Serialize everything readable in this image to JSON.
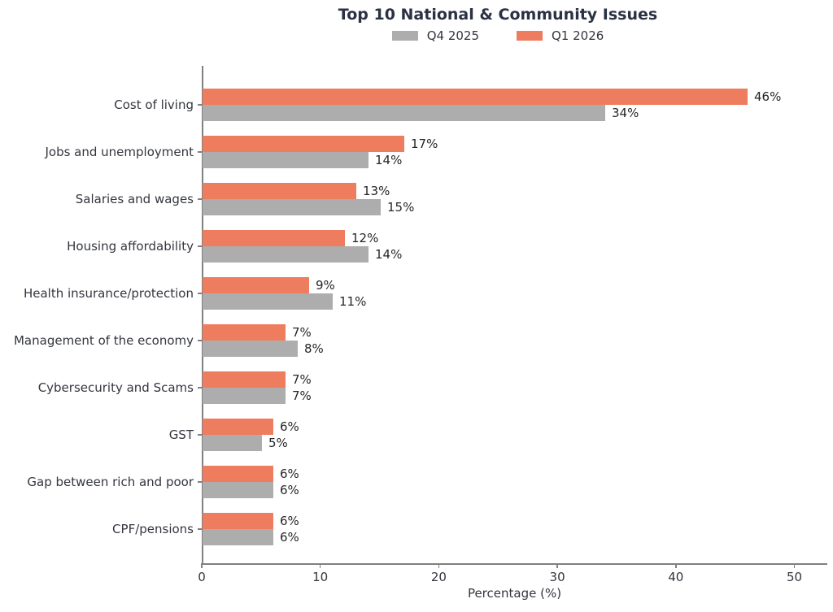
{
  "title": "Top 10 National & Community Issues",
  "legend": [
    {
      "label": "Q4 2025",
      "color": "#adadad"
    },
    {
      "label": "Q1 2026",
      "color": "#ee7d5f"
    }
  ],
  "chart_data": {
    "type": "bar",
    "orientation": "horizontal",
    "title": "Top 10 National & Community Issues",
    "xlabel": "Percentage (%)",
    "xlim": [
      0,
      50
    ],
    "xticks": [
      "0",
      "10",
      "20",
      "30",
      "40",
      "50"
    ],
    "grid": false,
    "legend_position": "top-center",
    "value_suffix": "%",
    "categories": [
      "Cost of living",
      "Jobs and unemployment",
      "Salaries and wages",
      "Housing affordability",
      "Health insurance/protection",
      "Management of the economy",
      "Cybersecurity and Scams",
      "GST",
      "Gap between rich and poor",
      "CPF/pensions"
    ],
    "series": [
      {
        "name": "Q1 2026",
        "color": "#ee7d5f",
        "bar_position": "top",
        "values": [
          46,
          17,
          13,
          12,
          9,
          7,
          7,
          6,
          6,
          6
        ]
      },
      {
        "name": "Q4 2025",
        "color": "#adadad",
        "bar_position": "bottom",
        "values": [
          34,
          14,
          15,
          14,
          11,
          8,
          7,
          5,
          6,
          6
        ]
      }
    ]
  }
}
